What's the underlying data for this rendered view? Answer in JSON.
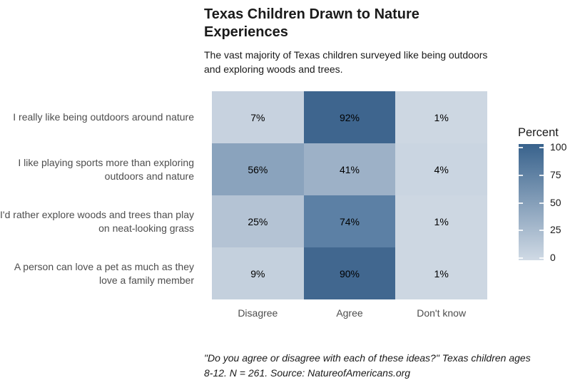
{
  "header": {
    "title": "Texas Children Drawn to Nature Experiences",
    "subtitle": "The vast majority of Texas children surveyed like being outdoors and exploring woods and trees."
  },
  "caption": "\"Do you agree or disagree with each of these ideas?\" Texas children ages 8-12. N = 261. Source: NatureofAmericans.org",
  "chart_data": {
    "type": "heatmap",
    "title": "Texas Children Drawn to Nature Experiences",
    "subtitle": "The vast majority of Texas children surveyed like being outdoors and exploring woods and trees.",
    "columns": [
      "Disagree",
      "Agree",
      "Don't know"
    ],
    "rows": [
      {
        "label": "I really like being outdoors around nature",
        "values": [
          7,
          92,
          1
        ],
        "colors": [
          "#c7d2df",
          "#3e658e",
          "#cdd7e2"
        ]
      },
      {
        "label": "I like playing sports more than exploring outdoors and nature",
        "values": [
          56,
          41,
          4
        ],
        "colors": [
          "#8aa3bd",
          "#9db1c7",
          "#cad5e1"
        ]
      },
      {
        "label": "I'd rather explore woods and trees than play on neat-looking grass",
        "values": [
          25,
          74,
          1
        ],
        "colors": [
          "#b4c3d4",
          "#5c80a5",
          "#cdd7e2"
        ]
      },
      {
        "label": "A person can love a pet as much as they love a family member",
        "values": [
          9,
          90,
          1
        ],
        "colors": [
          "#c4d0dd",
          "#41678f",
          "#cdd7e2"
        ]
      }
    ],
    "value_suffix": "%",
    "value_range": [
      0,
      100
    ],
    "legend": {
      "title": "Percent",
      "ticks": [
        100,
        75,
        50,
        25,
        0
      ],
      "top_color": "#38628c",
      "bottom_color": "#d0dae5"
    },
    "layout": {
      "grid_on": false,
      "legend_position": "right"
    }
  }
}
